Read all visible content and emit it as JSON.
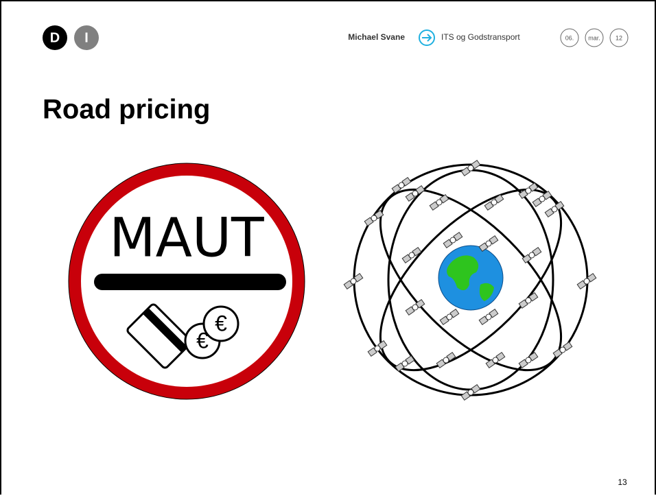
{
  "header": {
    "logo": [
      "D",
      "I"
    ],
    "author": "Michael Svane",
    "topic": "ITS og Godstransport",
    "date": [
      "06.",
      "mar.",
      "12"
    ]
  },
  "slide": {
    "title": "Road pricing",
    "sign_text": "MAUT",
    "coin_symbols": [
      "€",
      "€"
    ],
    "page_number": "13"
  }
}
